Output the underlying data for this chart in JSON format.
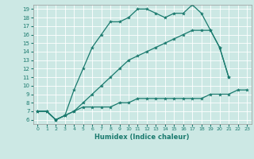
{
  "xlabel": "Humidex (Indice chaleur)",
  "ylabel": "",
  "bg_color": "#cce8e4",
  "line_color": "#1a7a6e",
  "grid_color": "#ffffff",
  "xlim": [
    -0.5,
    23.5
  ],
  "ylim": [
    5.5,
    19.5
  ],
  "yticks": [
    6,
    7,
    8,
    9,
    10,
    11,
    12,
    13,
    14,
    15,
    16,
    17,
    18,
    19
  ],
  "xticks": [
    0,
    1,
    2,
    3,
    4,
    5,
    6,
    7,
    8,
    9,
    10,
    11,
    12,
    13,
    14,
    15,
    16,
    17,
    18,
    19,
    20,
    21,
    22,
    23
  ],
  "line1_x": [
    0,
    1,
    2,
    3,
    4,
    5,
    6,
    7,
    8,
    9,
    10,
    11,
    12,
    13,
    14,
    15,
    16,
    17,
    18,
    19,
    20,
    21
  ],
  "line1_y": [
    7.0,
    7.0,
    6.0,
    6.5,
    9.5,
    12.0,
    14.5,
    16.0,
    17.5,
    17.5,
    18.0,
    19.0,
    19.0,
    18.5,
    18.0,
    18.5,
    18.5,
    19.5,
    18.5,
    16.5,
    14.5,
    11.0
  ],
  "line2_x": [
    0,
    1,
    2,
    3,
    4,
    5,
    6,
    7,
    8,
    9,
    10,
    11,
    12,
    13,
    14,
    15,
    16,
    17,
    18,
    19,
    20,
    21
  ],
  "line2_y": [
    7.0,
    7.0,
    6.0,
    6.5,
    7.0,
    8.0,
    9.0,
    10.0,
    11.0,
    12.0,
    13.0,
    13.5,
    14.0,
    14.5,
    15.0,
    15.5,
    16.0,
    16.5,
    16.5,
    16.5,
    14.5,
    11.0
  ],
  "line3_x": [
    0,
    1,
    2,
    3,
    4,
    5,
    6,
    7,
    8,
    9,
    10,
    11,
    12,
    13,
    14,
    15,
    16,
    17,
    18,
    19,
    20,
    21,
    22,
    23
  ],
  "line3_y": [
    7.0,
    7.0,
    6.0,
    6.5,
    7.0,
    7.5,
    7.5,
    7.5,
    7.5,
    8.0,
    8.0,
    8.5,
    8.5,
    8.5,
    8.5,
    8.5,
    8.5,
    8.5,
    8.5,
    9.0,
    9.0,
    9.0,
    9.5,
    9.5
  ]
}
